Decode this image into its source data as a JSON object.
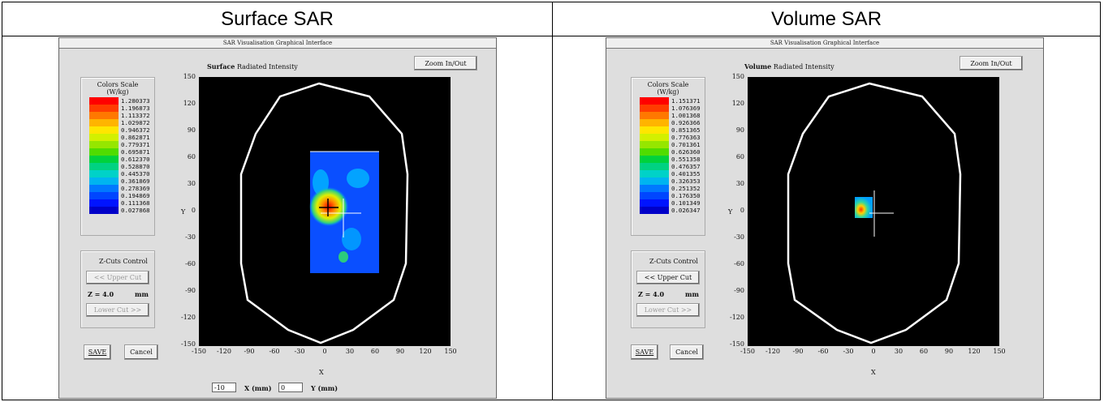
{
  "columns": [
    {
      "heading": "Surface SAR"
    },
    {
      "heading": "Volume SAR"
    }
  ],
  "windows": [
    {
      "title": "SAR Visualisation Graphical Interface",
      "plot_title_bold": "Surface",
      "plot_title_rest": "Radiated Intensity",
      "zoom_label": "Zoom In/Out",
      "scale_title": "Colors Scale",
      "scale_unit": "(W/kg)",
      "scale_values": [
        "1.280373",
        "1.196873",
        "1.113372",
        "1.029872",
        "0.946372",
        "0.862871",
        "0.779371",
        "0.695871",
        "0.612370",
        "0.528870",
        "0.445370",
        "0.361869",
        "0.278369",
        "0.194869",
        "0.111368",
        "0.027868"
      ],
      "zcuts_title": "Z-Cuts Control",
      "upper_cut": "<< Upper Cut",
      "z_label": "Z = 4.0",
      "z_unit": "mm",
      "lower_cut": "Lower Cut >>",
      "save": "SAVE",
      "cancel": "Cancel",
      "x_axis_label": "X",
      "y_axis_label": "Y",
      "x_field_value": "-10",
      "x_field_unit": "X (mm)",
      "y_field_value": "0",
      "y_field_unit": "Y (mm)",
      "ticks_x": [
        "-150",
        "-120",
        "-90",
        "-60",
        "-30",
        "0",
        "30",
        "60",
        "90",
        "120",
        "150"
      ],
      "ticks_y": [
        "150",
        "120",
        "90",
        "60",
        "30",
        "0",
        "-30",
        "-60",
        "-90",
        "-120",
        "-150"
      ]
    },
    {
      "title": "SAR Visualisation Graphical Interface",
      "plot_title_bold": "Volume",
      "plot_title_rest": "Radiated Intensity",
      "zoom_label": "Zoom In/Out",
      "scale_title": "Colors Scale",
      "scale_unit": "(W/kg)",
      "scale_values": [
        "1.151371",
        "1.076369",
        "1.001368",
        "0.926366",
        "0.851365",
        "0.776363",
        "0.701361",
        "0.626360",
        "0.551358",
        "0.476357",
        "0.401355",
        "0.326353",
        "0.251352",
        "0.176350",
        "0.101349",
        "0.026347"
      ],
      "zcuts_title": "Z-Cuts Control",
      "upper_cut": "<< Upper Cut",
      "z_label": "Z = 4.0",
      "z_unit": "mm",
      "lower_cut": "Lower Cut >>",
      "save": "SAVE",
      "cancel": "Cancel",
      "x_axis_label": "X",
      "y_axis_label": "Y",
      "ticks_x": [
        "-150",
        "-120",
        "-90",
        "-60",
        "-30",
        "0",
        "30",
        "60",
        "90",
        "120",
        "150"
      ],
      "ticks_y": [
        "150",
        "120",
        "90",
        "60",
        "30",
        "0",
        "-30",
        "-60",
        "-90",
        "-120",
        "-150"
      ]
    }
  ],
  "colors": {
    "scale": [
      "#ff0000",
      "#ff3c00",
      "#ff7800",
      "#ffb400",
      "#ffe600",
      "#d2f000",
      "#96e600",
      "#50dc00",
      "#00d23c",
      "#00d282",
      "#00d2c8",
      "#00b4f0",
      "#0078ff",
      "#0046ff",
      "#0014ff",
      "#0000c8"
    ]
  }
}
